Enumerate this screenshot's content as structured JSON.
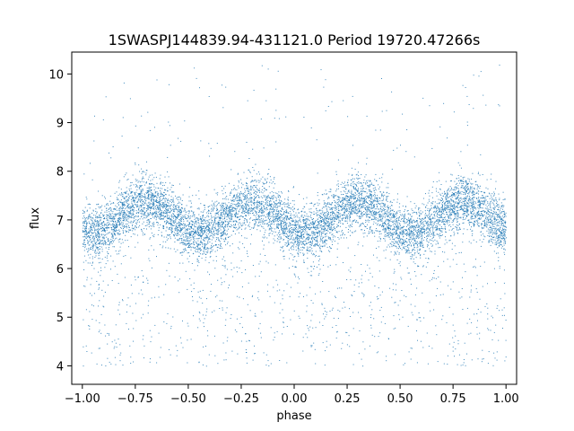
{
  "chart_data": {
    "type": "scatter",
    "title": "1SWASPJ144839.94-431121.0 Period 19720.47266s",
    "xlabel": "phase",
    "ylabel": "flux",
    "xlim": [
      -1.05,
      1.05
    ],
    "ylim": [
      3.62,
      10.45
    ],
    "x_ticks": [
      -1.0,
      -0.75,
      -0.5,
      -0.25,
      0.0,
      0.25,
      0.5,
      0.75,
      1.0
    ],
    "x_tick_labels": [
      "−1.00",
      "−0.75",
      "−0.50",
      "−0.25",
      "0.00",
      "0.25",
      "0.50",
      "0.75",
      "1.00"
    ],
    "y_ticks": [
      4,
      5,
      6,
      7,
      8,
      9,
      10
    ],
    "y_tick_labels": [
      "4",
      "5",
      "6",
      "7",
      "8",
      "9",
      "10"
    ],
    "grid": false,
    "legend": "none",
    "marker_color": "#1f77b4",
    "series": [
      {
        "phase_range": [
          -1.0,
          1.0
        ],
        "mean_flux": 7.05,
        "amplitude": 0.33,
        "cycles_per_phase_unit": 2,
        "brightest_phase": -0.2,
        "core_spread": 0.28,
        "outlier_range": [
          4.0,
          10.2
        ]
      }
    ]
  }
}
